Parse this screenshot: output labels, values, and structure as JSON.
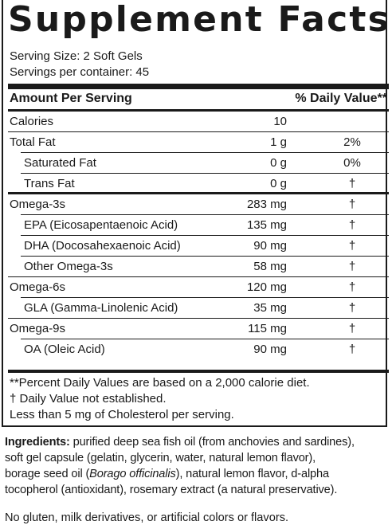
{
  "title": "Supplement Facts",
  "serving_size": "Serving Size: 2 Soft Gels",
  "servings_per_container": "Servings per container: 45",
  "header": {
    "amount": "Amount Per Serving",
    "daily_value": "% Daily Value**"
  },
  "rows": [
    {
      "name": "Calories",
      "amount": "10",
      "dv": ""
    },
    {
      "name": "Total Fat",
      "amount": "1 g",
      "dv": "2%"
    },
    {
      "name": "Saturated Fat",
      "amount": "0 g",
      "dv": "0%"
    },
    {
      "name": "Trans Fat",
      "amount": "0 g",
      "dv": "†"
    },
    {
      "name": "Omega-3s",
      "amount": "283 mg",
      "dv": "†"
    },
    {
      "name": "EPA (Eicosapentaenoic Acid)",
      "amount": "135 mg",
      "dv": "†"
    },
    {
      "name": "DHA (Docosahexaenoic Acid)",
      "amount": "90 mg",
      "dv": "†"
    },
    {
      "name": "Other Omega-3s",
      "amount": "58 mg",
      "dv": "†"
    },
    {
      "name": "Omega-6s",
      "amount": "120 mg",
      "dv": "†"
    },
    {
      "name": "GLA (Gamma-Linolenic Acid)",
      "amount": "35 mg",
      "dv": "†"
    },
    {
      "name": "Omega-9s",
      "amount": "115 mg",
      "dv": "†"
    },
    {
      "name": "OA (Oleic Acid)",
      "amount": "90 mg",
      "dv": "†"
    }
  ],
  "footnotes": {
    "percent_dv": "**Percent Daily Values are based on a 2,000 calorie diet.",
    "not_established": "†  Daily Value not established.",
    "cholesterol": "Less than 5 mg of Cholesterol per serving."
  },
  "ingredients": {
    "label": "Ingredients:",
    "line1": " purified deep sea fish oil (from anchovies and sardines),",
    "line2": "soft gel capsule (gelatin, glycerin, water, natural lemon flavor),",
    "line3_a": "borage seed oil (",
    "line3_italic": "Borago officinalis",
    "line3_b": "), natural lemon flavor, d-alpha",
    "line4": "tocopherol (antioxidant), rosemary extract (a natural preservative)."
  },
  "free_from": "No gluten, milk derivatives, or artificial colors or flavors."
}
